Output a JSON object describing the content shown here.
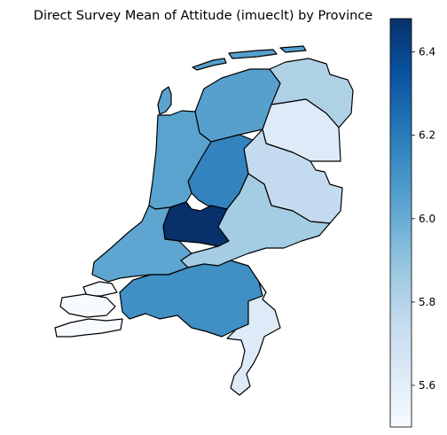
{
  "title": "Direct Survey Mean of Attitude (imueclt) by Province",
  "colormap": "Blues",
  "colorbar": {
    "range": [
      5.5,
      6.48
    ],
    "ticks": [
      "5.6",
      "5.8",
      "6.0",
      "6.2",
      "6.4"
    ],
    "tick_values": [
      5.6,
      5.8,
      6.0,
      6.2,
      6.4
    ]
  },
  "chart_data": {
    "type": "choropleth",
    "title": "Direct Survey Mean of Attitude (imueclt) by Province",
    "variable": "imueclt",
    "value_range": [
      5.5,
      6.48
    ],
    "regions": [
      {
        "id": "friesland",
        "value": 6.05
      },
      {
        "id": "groningen",
        "value": 5.82
      },
      {
        "id": "drenthe",
        "value": 5.63
      },
      {
        "id": "overijssel",
        "value": 5.75
      },
      {
        "id": "flevoland",
        "value": 6.17
      },
      {
        "id": "noord-holland",
        "value": 6.04
      },
      {
        "id": "gelderland",
        "value": 5.85
      },
      {
        "id": "utrecht",
        "value": 6.48
      },
      {
        "id": "zuid-holland",
        "value": 6.03
      },
      {
        "id": "zeeland",
        "value": 5.5
      },
      {
        "id": "noord-brabant",
        "value": 6.12
      },
      {
        "id": "limburg",
        "value": 5.63
      }
    ]
  }
}
